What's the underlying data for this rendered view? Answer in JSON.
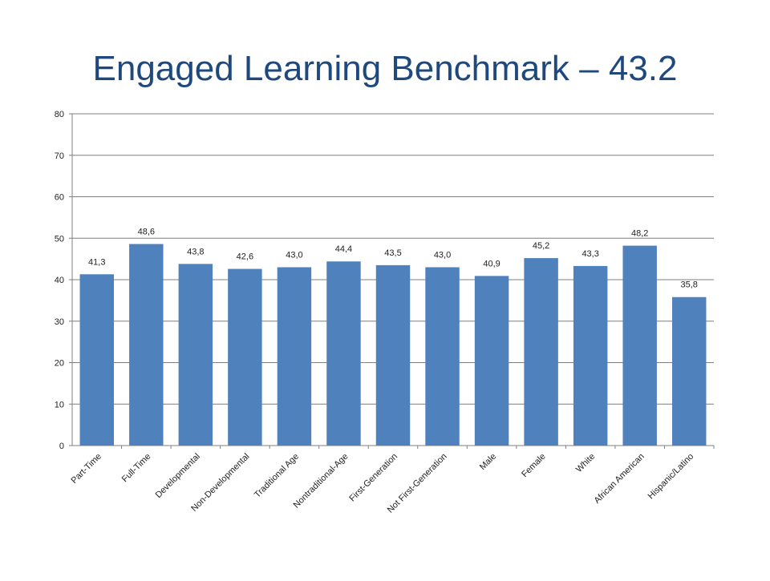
{
  "slide": {
    "title": "Engaged Learning Benchmark – 43.2"
  },
  "colors": {
    "bar": "#4f81bd",
    "title": "#1f497d",
    "grid": "#7f7f7f"
  },
  "chart_data": {
    "type": "bar",
    "title": "",
    "xlabel": "",
    "ylabel": "",
    "ylim": [
      0,
      80
    ],
    "yticks": [
      0,
      10,
      20,
      30,
      40,
      50,
      60,
      70,
      80
    ],
    "grid": true,
    "legend": "none",
    "categories": [
      "Part-Time",
      "Full-Time",
      "Developmental",
      "Non-Developmental",
      "Traditional Age",
      "Nontraditional-Age",
      "First-Generation",
      "Not First-Generation",
      "Male",
      "Female",
      "White",
      "African American",
      "Hispanic/Latino"
    ],
    "values": [
      41.3,
      48.6,
      43.8,
      42.6,
      43.0,
      44.4,
      43.5,
      43.0,
      40.9,
      45.2,
      43.3,
      48.2,
      35.8
    ],
    "data_labels": [
      "41,3",
      "48,6",
      "43,8",
      "42,6",
      "43,0",
      "44,4",
      "43,5",
      "43,0",
      "40,9",
      "45,2",
      "43,3",
      "48,2",
      "35,8"
    ]
  }
}
